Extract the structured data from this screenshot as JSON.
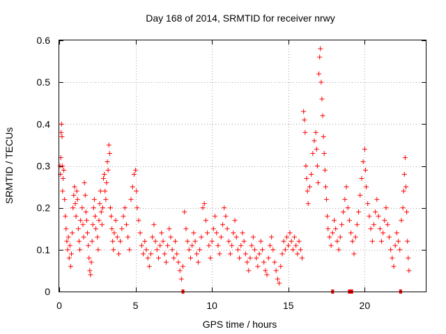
{
  "chart_data": {
    "type": "scatter",
    "title": "Day 168 of 2014, SRMTID for receiver nrwy",
    "xlabel": "GPS time / hours",
    "ylabel": "SRMTID / TECUs",
    "xlim": [
      0,
      24
    ],
    "ylim": [
      0,
      0.6
    ],
    "x_ticks": [
      0,
      5,
      10,
      15,
      20
    ],
    "y_ticks": [
      0,
      0.1,
      0.2,
      0.3,
      0.4,
      0.5,
      0.6
    ],
    "x_tick_labels": [
      "0",
      "5",
      "10",
      "15",
      "20"
    ],
    "y_tick_labels": [
      "0",
      "0.1",
      "0.2",
      "0.3",
      "0.4",
      "0.5",
      "0.6"
    ],
    "grid": true,
    "marker": "plus",
    "color": "#ff0000",
    "series": [
      {
        "name": "SRMTID",
        "points": [
          [
            0.05,
            0.3
          ],
          [
            0.08,
            0.28
          ],
          [
            0.1,
            0.32
          ],
          [
            0.12,
            0.38
          ],
          [
            0.15,
            0.4
          ],
          [
            0.18,
            0.37
          ],
          [
            0.2,
            0.3
          ],
          [
            0.22,
            0.24
          ],
          [
            0.25,
            0.27
          ],
          [
            0.3,
            0.29
          ],
          [
            0.35,
            0.22
          ],
          [
            0.4,
            0.18
          ],
          [
            0.45,
            0.15
          ],
          [
            0.5,
            0.12
          ],
          [
            0.55,
            0.1
          ],
          [
            0.6,
            0.13
          ],
          [
            0.65,
            0.08
          ],
          [
            0.7,
            0.11
          ],
          [
            0.75,
            0.06
          ],
          [
            0.8,
            0.09
          ],
          [
            0.85,
            0.14
          ],
          [
            0.9,
            0.2
          ],
          [
            0.95,
            0.23
          ],
          [
            1.0,
            0.25
          ],
          [
            1.05,
            0.21
          ],
          [
            1.1,
            0.18
          ],
          [
            1.15,
            0.24
          ],
          [
            1.2,
            0.22
          ],
          [
            1.25,
            0.15
          ],
          [
            1.3,
            0.12
          ],
          [
            1.35,
            0.1
          ],
          [
            1.4,
            0.17
          ],
          [
            1.5,
            0.2
          ],
          [
            1.55,
            0.16
          ],
          [
            1.6,
            0.13
          ],
          [
            1.65,
            0.26
          ],
          [
            1.7,
            0.23
          ],
          [
            1.75,
            0.19
          ],
          [
            1.8,
            0.17
          ],
          [
            1.85,
            0.14
          ],
          [
            1.9,
            0.11
          ],
          [
            1.95,
            0.08
          ],
          [
            2.0,
            0.05
          ],
          [
            2.05,
            0.04
          ],
          [
            2.1,
            0.07
          ],
          [
            2.15,
            0.12
          ],
          [
            2.2,
            0.16
          ],
          [
            2.25,
            0.2
          ],
          [
            2.3,
            0.22
          ],
          [
            2.35,
            0.18
          ],
          [
            2.4,
            0.15
          ],
          [
            2.5,
            0.13
          ],
          [
            2.55,
            0.1
          ],
          [
            2.6,
            0.17
          ],
          [
            2.65,
            0.21
          ],
          [
            2.7,
            0.24
          ],
          [
            2.75,
            0.19
          ],
          [
            2.8,
            0.16
          ],
          [
            2.85,
            0.2
          ],
          [
            2.9,
            0.27
          ],
          [
            2.95,
            0.28
          ],
          [
            3.0,
            0.24
          ],
          [
            3.05,
            0.22
          ],
          [
            3.1,
            0.26
          ],
          [
            3.15,
            0.31
          ],
          [
            3.2,
            0.29
          ],
          [
            3.25,
            0.35
          ],
          [
            3.3,
            0.33
          ],
          [
            3.35,
            0.2
          ],
          [
            3.4,
            0.18
          ],
          [
            3.45,
            0.15
          ],
          [
            3.5,
            0.12
          ],
          [
            3.55,
            0.1
          ],
          [
            3.6,
            0.14
          ],
          [
            3.7,
            0.17
          ],
          [
            3.8,
            0.13
          ],
          [
            3.9,
            0.09
          ],
          [
            4.0,
            0.12
          ],
          [
            4.1,
            0.15
          ],
          [
            4.2,
            0.18
          ],
          [
            4.3,
            0.2
          ],
          [
            4.4,
            0.16
          ],
          [
            4.5,
            0.13
          ],
          [
            4.6,
            0.1
          ],
          [
            4.7,
            0.22
          ],
          [
            4.8,
            0.25
          ],
          [
            4.9,
            0.28
          ],
          [
            5.0,
            0.29
          ],
          [
            5.05,
            0.24
          ],
          [
            5.1,
            0.2
          ],
          [
            5.2,
            0.17
          ],
          [
            5.3,
            0.14
          ],
          [
            5.4,
            0.11
          ],
          [
            5.5,
            0.09
          ],
          [
            5.6,
            0.12
          ],
          [
            5.7,
            0.1
          ],
          [
            5.8,
            0.08
          ],
          [
            5.9,
            0.06
          ],
          [
            6.0,
            0.09
          ],
          [
            6.1,
            0.13
          ],
          [
            6.2,
            0.16
          ],
          [
            6.3,
            0.12
          ],
          [
            6.4,
            0.1
          ],
          [
            6.5,
            0.08
          ],
          [
            6.6,
            0.11
          ],
          [
            6.7,
            0.14
          ],
          [
            6.8,
            0.12
          ],
          [
            6.9,
            0.09
          ],
          [
            7.0,
            0.07
          ],
          [
            7.1,
            0.11
          ],
          [
            7.2,
            0.15
          ],
          [
            7.3,
            0.13
          ],
          [
            7.4,
            0.1
          ],
          [
            7.5,
            0.08
          ],
          [
            7.6,
            0.12
          ],
          [
            7.7,
            0.09
          ],
          [
            7.8,
            0.07
          ],
          [
            7.9,
            0.05
          ],
          [
            8.0,
            0.03
          ],
          [
            8.1,
            0.06
          ],
          [
            8.2,
            0.19
          ],
          [
            8.3,
            0.15
          ],
          [
            8.4,
            0.12
          ],
          [
            8.5,
            0.1
          ],
          [
            8.6,
            0.08
          ],
          [
            8.7,
            0.11
          ],
          [
            8.8,
            0.14
          ],
          [
            8.9,
            0.12
          ],
          [
            9.0,
            0.09
          ],
          [
            9.1,
            0.07
          ],
          [
            9.2,
            0.1
          ],
          [
            9.3,
            0.13
          ],
          [
            9.4,
            0.2
          ],
          [
            9.5,
            0.21
          ],
          [
            9.6,
            0.17
          ],
          [
            9.7,
            0.14
          ],
          [
            9.8,
            0.11
          ],
          [
            9.9,
            0.08
          ],
          [
            10.0,
            0.12
          ],
          [
            10.1,
            0.15
          ],
          [
            10.2,
            0.18
          ],
          [
            10.3,
            0.14
          ],
          [
            10.4,
            0.11
          ],
          [
            10.5,
            0.09
          ],
          [
            10.6,
            0.13
          ],
          [
            10.7,
            0.16
          ],
          [
            10.8,
            0.2
          ],
          [
            10.9,
            0.18
          ],
          [
            11.0,
            0.15
          ],
          [
            11.1,
            0.12
          ],
          [
            11.2,
            0.09
          ],
          [
            11.3,
            0.11
          ],
          [
            11.4,
            0.14
          ],
          [
            11.5,
            0.17
          ],
          [
            11.6,
            0.13
          ],
          [
            11.7,
            0.1
          ],
          [
            11.8,
            0.08
          ],
          [
            11.9,
            0.11
          ],
          [
            12.0,
            0.14
          ],
          [
            12.1,
            0.12
          ],
          [
            12.2,
            0.09
          ],
          [
            12.3,
            0.07
          ],
          [
            12.4,
            0.05
          ],
          [
            12.5,
            0.08
          ],
          [
            12.6,
            0.11
          ],
          [
            12.7,
            0.13
          ],
          [
            12.8,
            0.1
          ],
          [
            12.9,
            0.08
          ],
          [
            13.0,
            0.06
          ],
          [
            13.1,
            0.09
          ],
          [
            13.2,
            0.12
          ],
          [
            13.3,
            0.1
          ],
          [
            13.4,
            0.07
          ],
          [
            13.5,
            0.05
          ],
          [
            13.6,
            0.04
          ],
          [
            13.7,
            0.08
          ],
          [
            13.8,
            0.11
          ],
          [
            13.9,
            0.13
          ],
          [
            14.0,
            0.1
          ],
          [
            14.1,
            0.07
          ],
          [
            14.2,
            0.05
          ],
          [
            14.3,
            0.03
          ],
          [
            14.4,
            0.02
          ],
          [
            14.5,
            0.06
          ],
          [
            14.6,
            0.09
          ],
          [
            14.7,
            0.12
          ],
          [
            14.8,
            0.1
          ],
          [
            14.9,
            0.13
          ],
          [
            15.0,
            0.11
          ],
          [
            15.1,
            0.14
          ],
          [
            15.2,
            0.12
          ],
          [
            15.3,
            0.1
          ],
          [
            15.4,
            0.13
          ],
          [
            15.5,
            0.11
          ],
          [
            15.6,
            0.09
          ],
          [
            15.7,
            0.12
          ],
          [
            15.8,
            0.1
          ],
          [
            15.9,
            0.08
          ],
          [
            16.0,
            0.43
          ],
          [
            16.05,
            0.41
          ],
          [
            16.1,
            0.38
          ],
          [
            16.15,
            0.3
          ],
          [
            16.2,
            0.27
          ],
          [
            16.25,
            0.24
          ],
          [
            16.3,
            0.21
          ],
          [
            16.4,
            0.25
          ],
          [
            16.5,
            0.28
          ],
          [
            16.6,
            0.33
          ],
          [
            16.7,
            0.36
          ],
          [
            16.8,
            0.38
          ],
          [
            16.85,
            0.34
          ],
          [
            16.9,
            0.3
          ],
          [
            16.95,
            0.26
          ],
          [
            17.0,
            0.52
          ],
          [
            17.05,
            0.56
          ],
          [
            17.1,
            0.58
          ],
          [
            17.15,
            0.5
          ],
          [
            17.2,
            0.46
          ],
          [
            17.25,
            0.42
          ],
          [
            17.3,
            0.37
          ],
          [
            17.35,
            0.33
          ],
          [
            17.4,
            0.29
          ],
          [
            17.45,
            0.25
          ],
          [
            17.5,
            0.22
          ],
          [
            17.55,
            0.18
          ],
          [
            17.6,
            0.15
          ],
          [
            17.7,
            0.13
          ],
          [
            17.8,
            0.11
          ],
          [
            17.9,
            0.14
          ],
          [
            18.0,
            0.17
          ],
          [
            18.1,
            0.15
          ],
          [
            18.2,
            0.12
          ],
          [
            18.3,
            0.1
          ],
          [
            18.4,
            0.13
          ],
          [
            18.5,
            0.16
          ],
          [
            18.6,
            0.19
          ],
          [
            18.7,
            0.22
          ],
          [
            18.8,
            0.25
          ],
          [
            18.9,
            0.2
          ],
          [
            19.0,
            0.17
          ],
          [
            19.1,
            0.14
          ],
          [
            19.2,
            0.12
          ],
          [
            19.3,
            0.09
          ],
          [
            19.4,
            0.13
          ],
          [
            19.5,
            0.16
          ],
          [
            19.6,
            0.19
          ],
          [
            19.7,
            0.23
          ],
          [
            19.8,
            0.27
          ],
          [
            19.9,
            0.31
          ],
          [
            20.0,
            0.34
          ],
          [
            20.05,
            0.29
          ],
          [
            20.1,
            0.25
          ],
          [
            20.2,
            0.21
          ],
          [
            20.3,
            0.18
          ],
          [
            20.4,
            0.15
          ],
          [
            20.5,
            0.12
          ],
          [
            20.6,
            0.16
          ],
          [
            20.7,
            0.19
          ],
          [
            20.8,
            0.22
          ],
          [
            20.9,
            0.18
          ],
          [
            21.0,
            0.15
          ],
          [
            21.1,
            0.12
          ],
          [
            21.2,
            0.14
          ],
          [
            21.3,
            0.17
          ],
          [
            21.4,
            0.2
          ],
          [
            21.5,
            0.16
          ],
          [
            21.6,
            0.13
          ],
          [
            21.7,
            0.1
          ],
          [
            21.8,
            0.08
          ],
          [
            21.9,
            0.06
          ],
          [
            22.0,
            0.11
          ],
          [
            22.1,
            0.14
          ],
          [
            22.2,
            0.12
          ],
          [
            22.3,
            0.1
          ],
          [
            22.4,
            0.17
          ],
          [
            22.5,
            0.2
          ],
          [
            22.55,
            0.24
          ],
          [
            22.6,
            0.28
          ],
          [
            22.65,
            0.32
          ],
          [
            22.7,
            0.25
          ],
          [
            22.75,
            0.19
          ],
          [
            22.8,
            0.12
          ],
          [
            22.85,
            0.08
          ],
          [
            22.9,
            0.05
          ]
        ]
      }
    ],
    "zero_markers_x": [
      8.1,
      17.9,
      19.0,
      19.15,
      22.35
    ]
  }
}
